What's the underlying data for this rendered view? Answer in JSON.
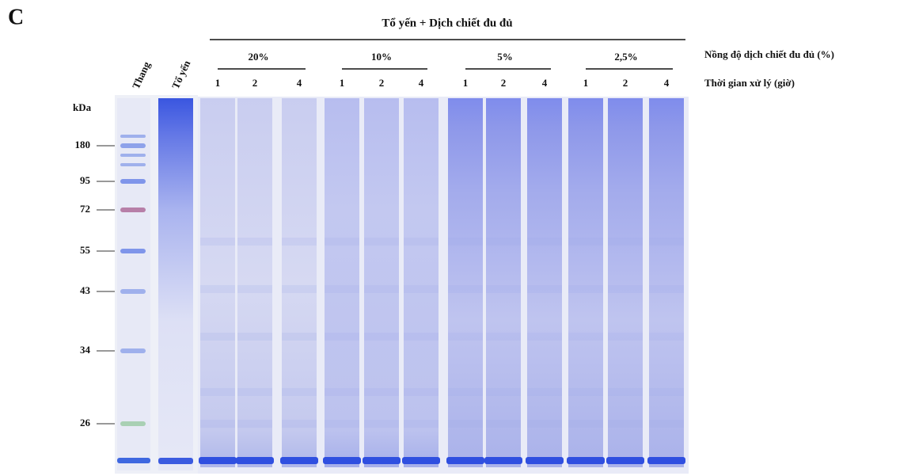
{
  "panel_label": "C",
  "header": "Tổ yến + Dịch chiết đu đủ",
  "lanes": {
    "ladder": "Thang",
    "control": "Tổ yến"
  },
  "groups": [
    {
      "label": "20%",
      "times": [
        "1",
        "2",
        "4"
      ]
    },
    {
      "label": "10%",
      "times": [
        "1",
        "2",
        "4"
      ]
    },
    {
      "label": "5%",
      "times": [
        "1",
        "2",
        "4"
      ]
    },
    {
      "label": "2,5%",
      "times": [
        "1",
        "2",
        "4"
      ]
    }
  ],
  "row_labels": {
    "concentration": "Nồng độ dịch chiết đu đủ (%)",
    "time": "Thời gian xử lý (giờ)"
  },
  "markers": {
    "unit": "kDa",
    "sizes": [
      "180",
      "95",
      "72",
      "55",
      "43",
      "34",
      "26"
    ]
  }
}
